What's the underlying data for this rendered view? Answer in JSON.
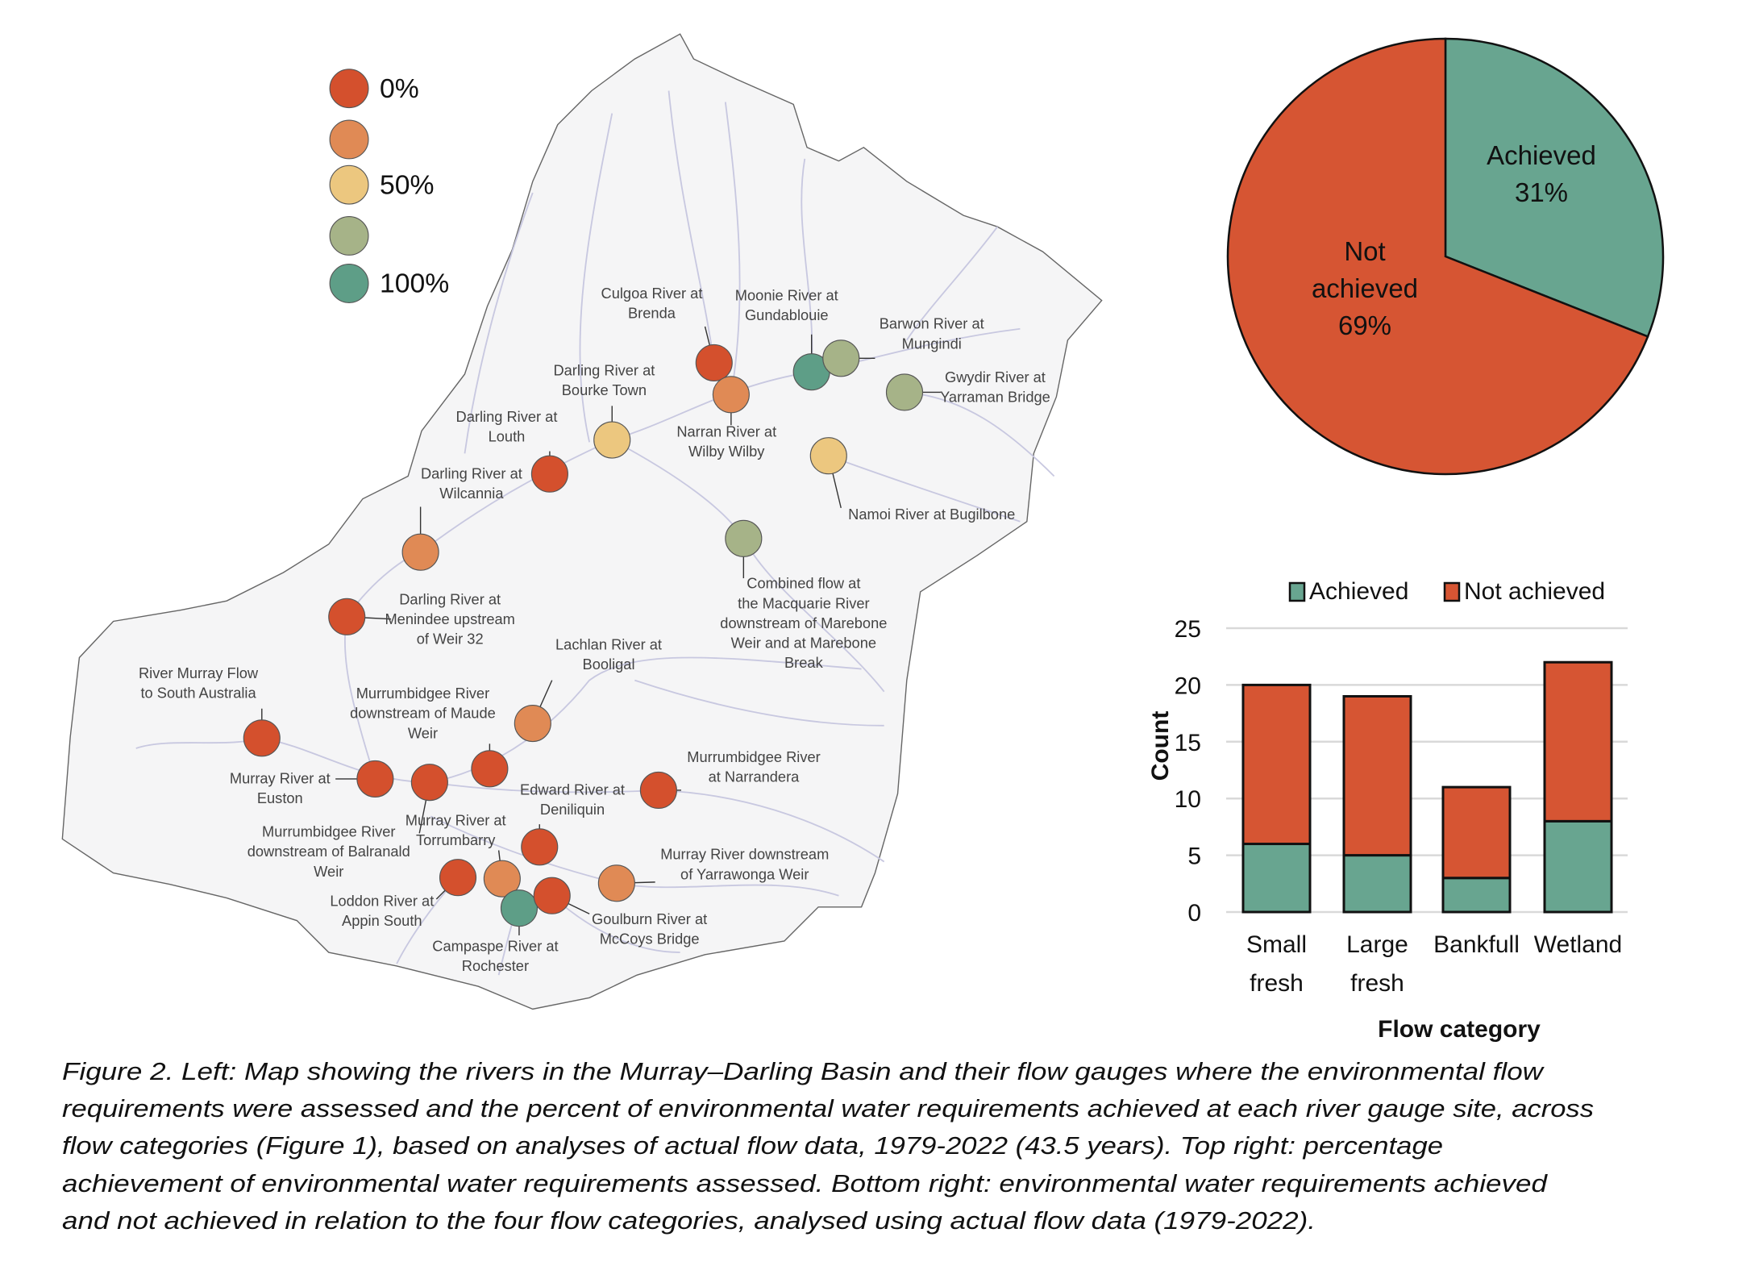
{
  "colors": {
    "level": [
      "#d4502d",
      "#e08a55",
      "#ecc77f",
      "#a6b388",
      "#5e9e87"
    ],
    "achieved": "#68a590",
    "not_achieved": "#d65533",
    "map_fill": "#f5f5f6",
    "river": "#c8c8e0"
  },
  "map": {
    "legend": [
      "0%",
      "",
      "50%",
      "",
      "100%"
    ],
    "gauges": [
      {
        "label": [
          "Culgoa River at",
          "Brenda"
        ],
        "level": 0
      },
      {
        "label": [
          "Moonie River at",
          "Gundablouie"
        ],
        "level": 4
      },
      {
        "label": [
          "Barwon River at",
          "Mungindi"
        ],
        "level": 3
      },
      {
        "label": [
          "Gwydir River at",
          "Yarraman Bridge"
        ],
        "level": 3
      },
      {
        "label": [
          "Narran River at",
          "Wilby Wilby"
        ],
        "level": 1
      },
      {
        "label": [
          "Darling River at",
          "Bourke Town"
        ],
        "level": 2
      },
      {
        "label": [
          "Darling River at",
          "Louth"
        ],
        "level": 0
      },
      {
        "label": [
          "Namoi River at Bugilbone"
        ],
        "level": 2
      },
      {
        "label": [
          "Darling River at",
          "Wilcannia"
        ],
        "level": 1
      },
      {
        "label": [
          "Combined flow at",
          "the Macquarie River",
          "downstream of Marebone",
          "Weir and at Marebone",
          "Break"
        ],
        "level": 3
      },
      {
        "label": [
          "Darling River at",
          "Menindee upstream",
          "of Weir 32"
        ],
        "level": 0
      },
      {
        "label": [
          "Lachlan River at",
          "Booligal"
        ],
        "level": 1
      },
      {
        "label": [
          "River Murray Flow",
          "to South Australia"
        ],
        "level": 0
      },
      {
        "label": [
          "Murray River at",
          "Euston"
        ],
        "level": 0
      },
      {
        "label": [
          "Murrumbidgee River",
          "downstream of Balranald",
          "Weir"
        ],
        "level": 0
      },
      {
        "label": [
          "Murrumbidgee River",
          "downstream of Maude",
          "Weir"
        ],
        "level": 0
      },
      {
        "label": [
          "Murrumbidgee River",
          "at Narrandera"
        ],
        "level": 0
      },
      {
        "label": [
          "Edward River at",
          "Deniliquin"
        ],
        "level": 0
      },
      {
        "label": [
          "Murray River at",
          "Torrumbarry"
        ],
        "level": 1
      },
      {
        "label": [
          "Loddon River at",
          "Appin South"
        ],
        "level": 0
      },
      {
        "label": [
          "Campaspe River at",
          "Rochester"
        ],
        "level": 4
      },
      {
        "label": [
          "Goulburn River at",
          "McCoys Bridge"
        ],
        "level": 0
      },
      {
        "label": [
          "Murray River downstream",
          "of Yarrawonga Weir"
        ],
        "level": 1
      }
    ]
  },
  "chart_data": [
    {
      "type": "pie",
      "title": "",
      "slices": [
        {
          "label": "Achieved",
          "value": 31,
          "text": "31%",
          "lines": [
            "Achieved",
            "31%"
          ]
        },
        {
          "label": "Not achieved",
          "value": 69,
          "text": "69%",
          "lines": [
            "Not",
            "achieved",
            "69%"
          ]
        }
      ]
    },
    {
      "type": "bar",
      "stacked": true,
      "categories": [
        [
          "Small",
          "fresh"
        ],
        [
          "Large",
          "fresh"
        ],
        [
          "Bankfull"
        ],
        [
          "Wetland"
        ]
      ],
      "series": [
        {
          "name": "Achieved",
          "values": [
            6,
            5,
            3,
            8
          ]
        },
        {
          "name": "Not achieved",
          "values": [
            14,
            14,
            8,
            14
          ]
        }
      ],
      "xlabel": "Flow category",
      "ylabel": "Count",
      "ylim": [
        0,
        25
      ],
      "yticks": [
        "0",
        "5",
        "10",
        "15",
        "20",
        "25"
      ],
      "grid": true,
      "legend": "top"
    }
  ],
  "caption": [
    "Figure 2. Left: Map showing the rivers in the Murray–Darling Basin and their flow gauges where the environmental flow",
    "requirements were assessed and the percent of environmental water requirements achieved at each river gauge site, across",
    "flow categories (Figure 1), based on analyses of actual flow data, 1979-2022 (43.5 years). Top right: percentage",
    "achievement of environmental water requirements assessed. Bottom right: environmental water requirements achieved",
    "and not achieved in relation to the four flow categories, analysed using actual flow data (1979-2022)."
  ]
}
